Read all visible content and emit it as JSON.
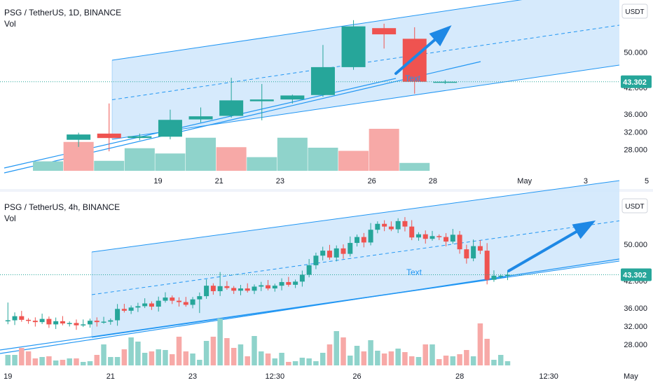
{
  "colors": {
    "up": "#26a69a",
    "down": "#ef5350",
    "vol_up": "#8fd3cb",
    "vol_down": "#f7a9a7",
    "channel_fill": "#cfe6fb",
    "channel_line": "#2196f3",
    "arrow": "#1e88e5",
    "current_price": "#26a69a",
    "axis_text": "#131722"
  },
  "chart_data": [
    {
      "type": "candlestick",
      "title": "PSG / TetherUS, 1D, BINANCE",
      "volume_label": "Vol",
      "unit_badge": "USDT",
      "current_price": {
        "value": 43.302,
        "label": "43.302"
      },
      "x_ticks": [
        {
          "t": 5,
          "label": "19"
        },
        {
          "t": 7,
          "label": "21"
        },
        {
          "t": 9,
          "label": "23"
        },
        {
          "t": 12,
          "label": "26"
        },
        {
          "t": 14,
          "label": "28"
        },
        {
          "t": 17,
          "label": "May"
        },
        {
          "t": 19,
          "label": "3"
        },
        {
          "t": 21,
          "label": "5"
        }
      ],
      "y_ticks": [
        {
          "v": 50,
          "label": "50.000"
        },
        {
          "v": 42,
          "label": "42.000"
        },
        {
          "v": 36,
          "label": "36.000"
        },
        {
          "v": 32,
          "label": "32.000"
        },
        {
          "v": 28,
          "label": "28.000"
        }
      ],
      "candles": [
        {
          "t": 2.4,
          "o": 30.2,
          "h": 31.8,
          "l": 28.6,
          "c": 31.4
        },
        {
          "t": 3.4,
          "o": 31.6,
          "h": 38.4,
          "l": 27.6,
          "c": 30.6
        },
        {
          "t": 4.4,
          "o": 30.6,
          "h": 31.6,
          "l": 30.1,
          "c": 31.0
        },
        {
          "t": 5.4,
          "o": 30.9,
          "h": 37.0,
          "l": 30.3,
          "c": 34.7
        },
        {
          "t": 6.4,
          "o": 34.8,
          "h": 37.5,
          "l": 34.1,
          "c": 35.5
        },
        {
          "t": 7.4,
          "o": 35.6,
          "h": 44.2,
          "l": 35.2,
          "c": 39.1
        },
        {
          "t": 8.4,
          "o": 38.9,
          "h": 42.8,
          "l": 34.6,
          "c": 39.3
        },
        {
          "t": 9.4,
          "o": 39.3,
          "h": 40.4,
          "l": 38.4,
          "c": 40.2
        },
        {
          "t": 10.4,
          "o": 40.3,
          "h": 51.6,
          "l": 39.9,
          "c": 46.6
        },
        {
          "t": 11.4,
          "o": 46.6,
          "h": 57.2,
          "l": 46.0,
          "c": 55.8
        },
        {
          "t": 12.4,
          "o": 55.4,
          "h": 56.4,
          "l": 50.8,
          "c": 54.0
        },
        {
          "t": 13.4,
          "o": 53.0,
          "h": 55.6,
          "l": 40.6,
          "c": 43.3
        },
        {
          "t": 14.4,
          "o": 43.1,
          "h": 43.7,
          "l": 42.8,
          "c": 43.3
        }
      ],
      "volume": [
        {
          "t": 1.4,
          "v": 0.18,
          "up": true
        },
        {
          "t": 2.4,
          "v": 0.55,
          "up": false
        },
        {
          "t": 3.4,
          "v": 0.19,
          "up": true
        },
        {
          "t": 4.4,
          "v": 0.43,
          "up": true
        },
        {
          "t": 5.4,
          "v": 0.33,
          "up": true
        },
        {
          "t": 6.4,
          "v": 0.63,
          "up": true
        },
        {
          "t": 7.4,
          "v": 0.45,
          "up": false
        },
        {
          "t": 8.4,
          "v": 0.26,
          "up": true
        },
        {
          "t": 9.4,
          "v": 0.63,
          "up": true
        },
        {
          "t": 10.4,
          "v": 0.44,
          "up": true
        },
        {
          "t": 11.4,
          "v": 0.38,
          "up": false
        },
        {
          "t": 12.4,
          "v": 0.8,
          "up": false
        },
        {
          "t": 13.4,
          "v": 0.15,
          "up": true
        }
      ],
      "annotation": {
        "text": "Text"
      }
    },
    {
      "type": "candlestick",
      "title": "PSG / TetherUS, 4h, BINANCE",
      "volume_label": "Vol",
      "unit_badge": "USDT",
      "current_price": {
        "value": 43.302,
        "label": "43.302"
      },
      "x_ticks": [
        {
          "t": 1,
          "label": "19"
        },
        {
          "t": 16,
          "label": "21"
        },
        {
          "t": 28,
          "label": "23"
        },
        {
          "t": 40,
          "label": "12:30"
        },
        {
          "t": 52,
          "label": "26"
        },
        {
          "t": 67,
          "label": "28"
        },
        {
          "t": 80,
          "label": "12:30"
        },
        {
          "t": 92,
          "label": "May"
        }
      ],
      "y_ticks": [
        {
          "v": 50,
          "label": "50.000"
        },
        {
          "v": 42,
          "label": "42.000"
        },
        {
          "v": 36,
          "label": "36.000"
        },
        {
          "v": 32,
          "label": "32.000"
        },
        {
          "v": 28,
          "label": "28.000"
        }
      ],
      "closes": [
        33.3,
        34.2,
        33.4,
        33.2,
        32.9,
        33.6,
        32.4,
        33.1,
        32.6,
        32.7,
        32.2,
        32.4,
        33.2,
        32.9,
        33.0,
        33.3,
        35.8,
        35.4,
        36.1,
        36.4,
        37.0,
        36.3,
        37.6,
        38.3,
        37.6,
        37.3,
        36.7,
        37.9,
        38.6,
        40.9,
        39.7,
        40.8,
        40.4,
        39.8,
        40.3,
        39.8,
        40.7,
        41.0,
        40.3,
        40.9,
        41.7,
        41.1,
        41.8,
        43.3,
        45.4,
        47.5,
        48.6,
        47.1,
        49.1,
        47.9,
        50.3,
        51.6,
        50.4,
        53.2,
        54.5,
        53.9,
        53.3,
        55.1,
        53.9,
        51.5,
        52.2,
        51.2,
        51.8,
        51.6,
        50.6,
        52.1,
        48.9,
        46.9,
        49.6,
        48.6,
        42.2,
        43.1,
        43.1,
        43.3
      ],
      "volume_seed": [
        0.15,
        0.15,
        0.25,
        0.2,
        0.1,
        0.12,
        0.13,
        0.07,
        0.08,
        0.1,
        0.1,
        0.05,
        0.06,
        0.15,
        0.3,
        0.12,
        0.12,
        0.23,
        0.4,
        0.34,
        0.18,
        0.2,
        0.23,
        0.22,
        0.16,
        0.41,
        0.2,
        0.17,
        0.08,
        0.35,
        0.41,
        0.67,
        0.39,
        0.25,
        0.3,
        0.13,
        0.42,
        0.2,
        0.17,
        0.1,
        0.18,
        0.05,
        0.06,
        0.11,
        0.1,
        0.06,
        0.18,
        0.3,
        0.49,
        0.4,
        0.14,
        0.28,
        0.2,
        0.36,
        0.21,
        0.17,
        0.2,
        0.24,
        0.19,
        0.13,
        0.12,
        0.3,
        0.3,
        0.09,
        0.14,
        0.13,
        0.16,
        0.22,
        0.13,
        0.6,
        0.38,
        0.08,
        0.15,
        0.06
      ],
      "annotation": {
        "text": "Text"
      }
    }
  ]
}
